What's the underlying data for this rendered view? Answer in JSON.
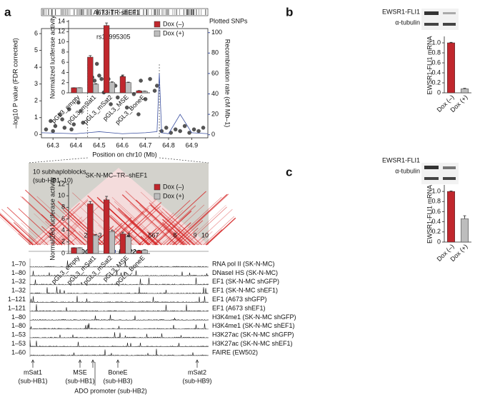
{
  "panel_labels": [
    "a",
    "b",
    "c"
  ],
  "chart_data": [
    {
      "type": "scatter",
      "annotation": "rs10995305",
      "top_track_label": "Plotted SNPs",
      "xlabel": "Position on chr10 (Mb)",
      "ylabel": "–log10 P value (FDR corrected)",
      "y2label": "Recombination rate (cM Mb–1)",
      "xlim": [
        64.25,
        64.97
      ],
      "xticks": [
        64.3,
        64.4,
        64.5,
        64.6,
        64.7,
        64.8,
        64.9
      ],
      "ylim": [
        -0.2,
        6.3
      ],
      "yticks": [
        0,
        1,
        2,
        3,
        4,
        5,
        6
      ],
      "y2lim": [
        -3,
        104
      ],
      "y2ticks": [
        0,
        20,
        40,
        60,
        80,
        100
      ],
      "y2color": "#3a4fa0",
      "region": [
        64.45,
        64.76
      ],
      "series": [
        {
          "color": "#555555",
          "x": [
            64.27,
            64.29,
            64.31,
            64.33,
            64.35,
            64.37,
            64.39,
            64.41,
            64.43,
            64.3,
            64.34,
            64.38,
            64.42,
            64.46,
            64.47,
            64.48,
            64.49,
            64.5,
            64.51,
            64.52,
            64.53,
            64.54,
            64.55,
            64.57,
            64.58,
            64.6,
            64.62,
            64.63,
            64.65,
            64.67,
            64.68,
            64.7,
            64.72,
            64.74,
            64.75,
            64.77,
            64.79,
            64.81,
            64.83,
            64.85,
            64.87,
            64.89,
            64.91,
            64.93,
            64.95
          ],
          "values": [
            0.3,
            0.8,
            0.5,
            1.2,
            0.4,
            1.5,
            0.6,
            1.9,
            0.7,
            0.2,
            0.9,
            0.3,
            1.4,
            3.3,
            3.4,
            3.2,
            4.2,
            3.5,
            3.3,
            2.5,
            3.4,
            3.3,
            1.8,
            2.9,
            2.2,
            3.4,
            1.6,
            2.8,
            2.4,
            1.2,
            3.2,
            2.1,
            3.3,
            2.6,
            2.9,
            0.2,
            0.4,
            0.1,
            0.3,
            0.2,
            0.5,
            0.1,
            0.3,
            0.2,
            0.4
          ]
        },
        {
          "color": "#3a4fa0",
          "axis": "y2",
          "x": [
            64.25,
            64.4,
            64.45,
            64.5,
            64.55,
            64.6,
            64.7,
            64.75,
            64.76,
            64.77,
            64.8,
            64.85,
            64.9,
            64.97
          ],
          "values": [
            2,
            1,
            2,
            3,
            2,
            1,
            2,
            3,
            60,
            2,
            1,
            20,
            2,
            1
          ]
        }
      ]
    },
    {
      "type": "bar",
      "title": "A673-TR-shEF1",
      "ylabel": "Normalized luciferase activity",
      "legend": "outside-right",
      "categories": [
        "pGL3_empty",
        "pGL3_mSat1",
        "pGL3_mSat2",
        "pGL3_MSE",
        "pGL3_BoneE"
      ],
      "ylim": [
        0,
        14
      ],
      "yticks": [
        0,
        2,
        4,
        6,
        8,
        10,
        12,
        14
      ],
      "series": [
        {
          "name": "Dox (–)",
          "color": "#c0272d",
          "values": [
            1,
            7,
            13.2,
            3.2,
            0.4
          ],
          "errors": [
            0,
            0.3,
            0.5,
            0.3,
            0.05
          ]
        },
        {
          "name": "Dox (+)",
          "color": "#bdbdbd",
          "values": [
            1,
            1.7,
            2,
            2,
            0.3
          ],
          "errors": [
            0,
            0.1,
            0.15,
            0.1,
            0.05
          ]
        }
      ]
    },
    {
      "type": "bar",
      "ylabel": "EWSR1-FLI1 mRNA",
      "blot_labels": [
        "EWSR1-FLI1",
        "α-tubulin"
      ],
      "categories": [
        "Dox (–)",
        "Dox (+)"
      ],
      "colors": [
        "#c0272d",
        "#bdbdbd"
      ],
      "ylim": [
        0,
        1.1
      ],
      "yticks": [
        0,
        0.2,
        0.4,
        0.6,
        0.8,
        {
          "value": 1,
          "label": "1.0"
        }
      ],
      "values": [
        1,
        0.08
      ],
      "errors": [
        0.01,
        0.01
      ]
    },
    {
      "type": "bar",
      "title": "SK-N-MC–TR–shEF1",
      "ylabel": "Normalized luciferase activity",
      "legend": "outside-right",
      "categories": [
        "pGL3_empty",
        "pGL3_mSat1",
        "pGL3_mSat2",
        "pGL3_MSE",
        "pGL3_BoneE"
      ],
      "ylim": [
        0,
        12
      ],
      "yticks": [
        0,
        2,
        4,
        6,
        8,
        10,
        12
      ],
      "series": [
        {
          "name": "Dox (–)",
          "color": "#c0272d",
          "values": [
            1,
            8.6,
            9.3,
            3.4,
            0.5
          ],
          "errors": [
            0,
            0.4,
            0.6,
            0.3,
            0.05
          ]
        },
        {
          "name": "Dox (+)",
          "color": "#bdbdbd",
          "values": [
            1,
            3.1,
            3.8,
            2.9,
            0.6
          ],
          "errors": [
            0,
            0.2,
            0.25,
            0.2,
            0.05
          ]
        }
      ]
    },
    {
      "type": "bar",
      "ylabel": "EWSR1-FLI1 mRNA",
      "blot_labels": [
        "EWSR1-FLI1",
        "α-tubulin"
      ],
      "categories": [
        "Dox (–)",
        "Dox (+)"
      ],
      "colors": [
        "#c0272d",
        "#bdbdbd"
      ],
      "ylim": [
        0,
        1.1
      ],
      "yticks": [
        0,
        0.2,
        0.4,
        0.6,
        0.8,
        {
          "value": 1,
          "label": "1.0"
        }
      ],
      "values": [
        1,
        0.46
      ],
      "errors": [
        0.01,
        0.06
      ]
    }
  ],
  "ld_block": {
    "title": "10 subhaploblocks",
    "subtitle": "(sub-HB1–10)",
    "block_labels": [
      "1",
      "2",
      "3",
      "4",
      "567",
      "8",
      "9",
      "10"
    ],
    "genes": [
      "ADO",
      "EGR2"
    ]
  },
  "tracks": [
    {
      "range": "1–70",
      "name": "RNA pol II (SK-N-MC)"
    },
    {
      "range": "1–80",
      "name": "DNaseI HS (SK-N-MC)"
    },
    {
      "range": "1–32",
      "name": "EF1 (SK-N-MC shGFP)"
    },
    {
      "range": "1–32",
      "name": "EF1 (SK-N-MC shEF1)"
    },
    {
      "range": "1–121",
      "name": "EF1 (A673 shGFP)"
    },
    {
      "range": "1–121",
      "name": "EF1 (A673 shEF1)"
    },
    {
      "range": "1–80",
      "name": "H3K4me1 (SK-N-MC shGFP)"
    },
    {
      "range": "1–80",
      "name": "H3K4me1 (SK-N-MC shEF1)"
    },
    {
      "range": "1–53",
      "name": "H3K27ac (SK-N-MC shGFP)"
    },
    {
      "range": "1–53",
      "name": "H3K27ac (SK-N-MC shEF1)"
    },
    {
      "range": "1–60",
      "name": "FAIRE (EW502)"
    }
  ],
  "elements": [
    {
      "name": "mSat1",
      "region": "(sub-HB1)"
    },
    {
      "name": "MSE",
      "region": "(sub-HB1)"
    },
    {
      "name": "BoneE",
      "region": "(sub-HB3)"
    },
    {
      "name": "mSat2",
      "region": "(sub-HB9)"
    }
  ],
  "promoter": "ADO promoter (sub-HB2)"
}
